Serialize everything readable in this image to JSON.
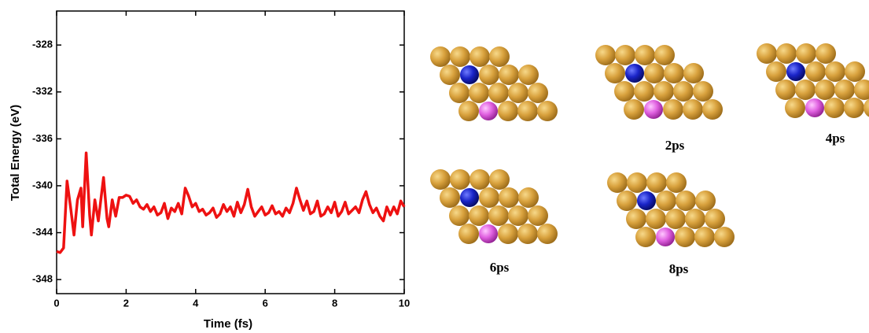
{
  "chart_data": {
    "type": "line",
    "x_label": "Time (fs)",
    "y_label": "Total Energy (eV)",
    "x": [
      0,
      0.1,
      0.2,
      0.3,
      0.4,
      0.5,
      0.6,
      0.7,
      0.75,
      0.85,
      0.95,
      1.0,
      1.1,
      1.2,
      1.3,
      1.35,
      1.45,
      1.5,
      1.6,
      1.7,
      1.8,
      1.9,
      2.0,
      2.1,
      2.2,
      2.3,
      2.4,
      2.5,
      2.6,
      2.7,
      2.8,
      2.9,
      3.0,
      3.1,
      3.2,
      3.3,
      3.4,
      3.5,
      3.6,
      3.7,
      3.8,
      3.9,
      4.0,
      4.1,
      4.2,
      4.3,
      4.4,
      4.5,
      4.6,
      4.7,
      4.8,
      4.9,
      5.0,
      5.1,
      5.2,
      5.3,
      5.4,
      5.5,
      5.6,
      5.7,
      5.8,
      5.9,
      6.0,
      6.1,
      6.2,
      6.3,
      6.4,
      6.5,
      6.6,
      6.7,
      6.8,
      6.9,
      7.0,
      7.1,
      7.2,
      7.3,
      7.4,
      7.5,
      7.6,
      7.7,
      7.8,
      7.9,
      8.0,
      8.1,
      8.2,
      8.3,
      8.4,
      8.5,
      8.6,
      8.7,
      8.8,
      8.9,
      9.0,
      9.1,
      9.2,
      9.3,
      9.4,
      9.5,
      9.6,
      9.7,
      9.8,
      9.9,
      10.0
    ],
    "series": [
      {
        "color": "#ee1111",
        "values": [
          -345.6,
          -345.7,
          -345.3,
          -339.6,
          -341.8,
          -344.2,
          -341.2,
          -340.2,
          -343.5,
          -337.2,
          -342.5,
          -344.2,
          -341.2,
          -343,
          -340.5,
          -339.3,
          -342.8,
          -343.5,
          -341.2,
          -342.6,
          -341,
          -341,
          -340.8,
          -340.9,
          -341.5,
          -341.2,
          -341.8,
          -342,
          -341.6,
          -342.2,
          -341.8,
          -342.5,
          -342.3,
          -341.5,
          -342.8,
          -341.9,
          -342.2,
          -341.5,
          -342.4,
          -340.2,
          -340.9,
          -341.8,
          -341.5,
          -342.2,
          -342,
          -342.5,
          -342.3,
          -341.9,
          -342.7,
          -342.4,
          -341.6,
          -342.2,
          -341.8,
          -342.6,
          -341.4,
          -342.3,
          -341.6,
          -340.3,
          -341.8,
          -342.6,
          -342.2,
          -341.8,
          -342.5,
          -342.3,
          -341.7,
          -342.4,
          -342.2,
          -342.6,
          -341.9,
          -342.3,
          -341.5,
          -340.2,
          -341.2,
          -342.1,
          -341.3,
          -342.4,
          -342.2,
          -341.3,
          -342.6,
          -342.4,
          -341.8,
          -342.3,
          -341.4,
          -342.6,
          -342.2,
          -341.4,
          -342.4,
          -342.1,
          -341.8,
          -342.3,
          -341.2,
          -340.5,
          -341.6,
          -342.3,
          -341.9,
          -342.6,
          -343,
          -341.8,
          -342.5,
          -341.8,
          -342.4,
          -341.3,
          -341.8
        ]
      }
    ],
    "xlim": [
      0,
      10
    ],
    "xticks": [
      0,
      2,
      4,
      6,
      8,
      10
    ],
    "ylim": [
      -349.2,
      -325.1
    ],
    "yticks": [
      -328,
      -332,
      -336,
      -340,
      -344,
      -348
    ]
  },
  "snapshot_labels": [
    "2ps",
    "4ps",
    "6ps",
    "8ps"
  ]
}
